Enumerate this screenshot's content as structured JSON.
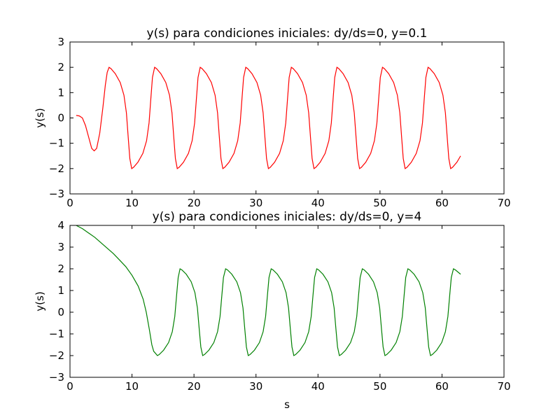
{
  "chart_data": [
    {
      "type": "line",
      "title": "y(s) para condiciones iniciales: dy/ds=0, y=0.1",
      "ylabel": "y(s)",
      "color": "#ff0000",
      "xlim": [
        0,
        70
      ],
      "xticks": [
        0,
        10,
        20,
        30,
        40,
        50,
        60,
        70
      ],
      "ylim": [
        -3,
        3
      ],
      "yticks": [
        {
          "value": -3,
          "label": "−3"
        },
        {
          "value": -2,
          "label": "−2"
        },
        {
          "value": -1,
          "label": "−1"
        },
        0,
        1,
        2,
        3
      ],
      "x": [
        1,
        1.5,
        2,
        2.5,
        3,
        3.5,
        3.9,
        4.3,
        4.8,
        5.3,
        5.7,
        6.0,
        6.3,
        6.6,
        7.3,
        8.1,
        8.7,
        9.1,
        9.4,
        9.65,
        9.95,
        10.25,
        10.95,
        11.75,
        12.35,
        12.75,
        13.05,
        13.3,
        13.65,
        13.95,
        14.65,
        15.45,
        16.05,
        16.45,
        16.75,
        17.0,
        17.3,
        17.6,
        18.3,
        19.1,
        19.7,
        20.1,
        20.4,
        20.65,
        21.0,
        21.3,
        22.0,
        22.8,
        23.4,
        23.8,
        24.1,
        24.35,
        24.65,
        24.95,
        25.65,
        26.45,
        27.05,
        27.45,
        27.75,
        28.0,
        28.35,
        28.65,
        29.35,
        30.15,
        30.75,
        31.15,
        31.45,
        31.7,
        32.0,
        32.3,
        33.0,
        33.8,
        34.4,
        34.8,
        35.1,
        35.35,
        35.7,
        36.0,
        36.7,
        37.5,
        38.1,
        38.5,
        38.8,
        39.05,
        39.35,
        39.65,
        40.35,
        41.15,
        41.75,
        42.15,
        42.45,
        42.7,
        43.05,
        43.35,
        44.05,
        44.85,
        45.45,
        45.85,
        46.15,
        46.4,
        46.7,
        47.0,
        47.7,
        48.5,
        49.1,
        49.5,
        49.8,
        50.05,
        50.4,
        50.7,
        51.4,
        52.2,
        52.8,
        53.2,
        53.5,
        53.75,
        54.05,
        54.35,
        55.05,
        55.85,
        56.45,
        56.85,
        57.15,
        57.4,
        57.75,
        58.05,
        58.75,
        59.55,
        60.15,
        60.55,
        60.85,
        61.1,
        61.4,
        61.7,
        62.4,
        63.0
      ],
      "values": [
        0.1,
        0.08,
        0.0,
        -0.3,
        -0.75,
        -1.2,
        -1.3,
        -1.2,
        -0.6,
        0.4,
        1.3,
        1.8,
        2,
        1.95,
        1.75,
        1.4,
        0.9,
        0.2,
        -0.8,
        -1.6,
        -2,
        -1.95,
        -1.75,
        -1.4,
        -0.9,
        -0.2,
        0.8,
        1.6,
        2,
        1.95,
        1.75,
        1.4,
        0.9,
        0.2,
        -0.8,
        -1.6,
        -2,
        -1.95,
        -1.75,
        -1.4,
        -0.9,
        -0.2,
        0.8,
        1.6,
        2,
        1.95,
        1.75,
        1.4,
        0.9,
        0.2,
        -0.8,
        -1.6,
        -2,
        -1.95,
        -1.75,
        -1.4,
        -0.9,
        -0.2,
        0.8,
        1.6,
        2,
        1.95,
        1.75,
        1.4,
        0.9,
        0.2,
        -0.8,
        -1.6,
        -2,
        -1.95,
        -1.75,
        -1.4,
        -0.9,
        -0.2,
        0.8,
        1.6,
        2,
        1.95,
        1.75,
        1.4,
        0.9,
        0.2,
        -0.8,
        -1.6,
        -2,
        -1.95,
        -1.75,
        -1.4,
        -0.9,
        -0.2,
        0.8,
        1.6,
        2,
        1.95,
        1.75,
        1.4,
        0.9,
        0.2,
        -0.8,
        -1.6,
        -2,
        -1.95,
        -1.75,
        -1.4,
        -0.9,
        -0.2,
        0.8,
        1.6,
        2,
        1.95,
        1.75,
        1.4,
        0.9,
        0.2,
        -0.8,
        -1.6,
        -2,
        -1.95,
        -1.75,
        -1.4,
        -0.9,
        -0.2,
        0.8,
        1.6,
        2,
        1.95,
        1.75,
        1.4,
        0.9,
        0.2,
        -0.8,
        -1.6,
        -2,
        -1.95,
        -1.75,
        -1.5
      ]
    },
    {
      "type": "line",
      "title": "y(s) para condiciones iniciales: dy/ds=0, y=4",
      "xlabel": "s",
      "ylabel": "y(s)",
      "color": "#008000",
      "xlim": [
        0,
        70
      ],
      "xticks": [
        0,
        10,
        20,
        30,
        40,
        50,
        60,
        70
      ],
      "ylim": [
        -3,
        4
      ],
      "yticks": [
        {
          "value": -3,
          "label": "−3"
        },
        {
          "value": -2,
          "label": "−2"
        },
        {
          "value": -1,
          "label": "−1"
        },
        0,
        1,
        2,
        3,
        4
      ],
      "x": [
        1,
        2,
        3,
        4,
        5,
        6,
        7,
        8,
        9,
        10,
        11,
        11.8,
        12.3,
        12.8,
        13.2,
        13.5,
        14.1,
        14.4,
        15.1,
        15.9,
        16.5,
        16.9,
        17.2,
        17.45,
        17.75,
        18.05,
        18.75,
        19.55,
        20.15,
        20.55,
        20.85,
        21.1,
        21.4,
        21.7,
        22.4,
        23.2,
        23.8,
        24.2,
        24.5,
        24.75,
        25.1,
        25.4,
        26.1,
        26.9,
        27.5,
        27.9,
        28.2,
        28.45,
        28.75,
        29.05,
        29.75,
        30.55,
        31.15,
        31.55,
        31.85,
        32.1,
        32.45,
        32.75,
        33.45,
        34.25,
        34.85,
        35.25,
        35.55,
        35.8,
        36.1,
        36.4,
        37.1,
        37.9,
        38.5,
        38.9,
        39.2,
        39.45,
        39.8,
        40.1,
        40.8,
        41.6,
        42.2,
        42.6,
        42.9,
        43.15,
        43.45,
        43.75,
        44.45,
        45.25,
        45.85,
        46.25,
        46.55,
        46.8,
        47.15,
        47.45,
        48.15,
        48.95,
        49.55,
        49.95,
        50.25,
        50.5,
        50.8,
        51.1,
        51.8,
        52.6,
        53.2,
        53.6,
        53.9,
        54.15,
        54.5,
        54.8,
        55.5,
        56.3,
        56.9,
        57.3,
        57.6,
        57.85,
        58.15,
        58.45,
        59.15,
        59.95,
        60.55,
        60.95,
        61.25,
        61.5,
        61.85,
        62.15,
        63.0
      ],
      "values": [
        4.0,
        3.85,
        3.65,
        3.45,
        3.2,
        2.95,
        2.7,
        2.4,
        2.1,
        1.7,
        1.2,
        0.6,
        0.0,
        -0.8,
        -1.5,
        -1.8,
        -2,
        -1.95,
        -1.75,
        -1.4,
        -0.9,
        -0.2,
        0.8,
        1.6,
        2,
        1.95,
        1.75,
        1.4,
        0.9,
        0.2,
        -0.8,
        -1.6,
        -2,
        -1.95,
        -1.75,
        -1.4,
        -0.9,
        -0.2,
        0.8,
        1.6,
        2,
        1.95,
        1.75,
        1.4,
        0.9,
        0.2,
        -0.8,
        -1.6,
        -2,
        -1.95,
        -1.75,
        -1.4,
        -0.9,
        -0.2,
        0.8,
        1.6,
        2,
        1.95,
        1.75,
        1.4,
        0.9,
        0.2,
        -0.8,
        -1.6,
        -2,
        -1.95,
        -1.75,
        -1.4,
        -0.9,
        -0.2,
        0.8,
        1.6,
        2,
        1.95,
        1.75,
        1.4,
        0.9,
        0.2,
        -0.8,
        -1.6,
        -2,
        -1.95,
        -1.75,
        -1.4,
        -0.9,
        -0.2,
        0.8,
        1.6,
        2,
        1.95,
        1.75,
        1.4,
        0.9,
        0.2,
        -0.8,
        -1.6,
        -2,
        -1.95,
        -1.75,
        -1.4,
        -0.9,
        -0.2,
        0.8,
        1.6,
        2,
        1.95,
        1.75,
        1.4,
        0.9,
        0.2,
        -0.8,
        -1.6,
        -2,
        -1.95,
        -1.75,
        -1.4,
        -0.9,
        -0.2,
        0.8,
        1.6,
        2,
        1.95,
        1.75
      ]
    }
  ]
}
